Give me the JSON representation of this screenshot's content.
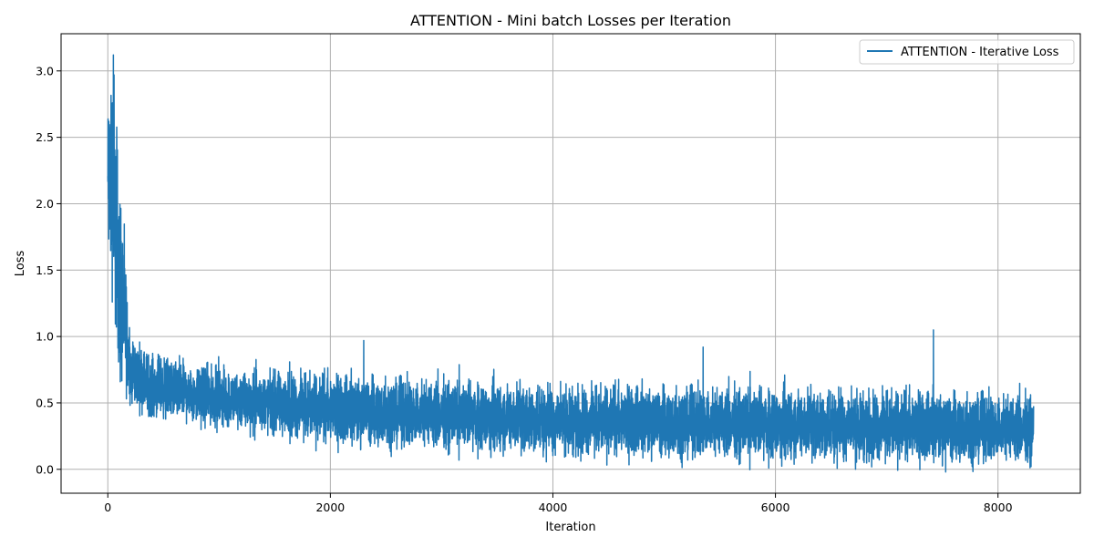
{
  "chart_data": {
    "type": "line",
    "title": "ATTENTION - Mini batch Losses per Iteration",
    "xlabel": "Iteration",
    "ylabel": "Loss",
    "xlim": [
      -420,
      8740
    ],
    "ylim": [
      -0.18,
      3.28
    ],
    "xticks": [
      0,
      2000,
      4000,
      6000,
      8000
    ],
    "xtick_labels": [
      "0",
      "2000",
      "4000",
      "6000",
      "8000"
    ],
    "yticks": [
      0.0,
      0.5,
      1.0,
      1.5,
      2.0,
      2.5,
      3.0
    ],
    "ytick_labels": [
      "0.0",
      "0.5",
      "1.0",
      "1.5",
      "2.0",
      "2.5",
      "3.0"
    ],
    "grid": true,
    "legend_position": "top-right",
    "series": [
      {
        "name": "ATTENTION - Iterative Loss",
        "color": "#1f77b4",
        "x_range": [
          0,
          8320
        ],
        "x_step": 1,
        "envelope_points": [
          {
            "x": 0,
            "min": 1.5,
            "max": 2.8
          },
          {
            "x": 50,
            "min": 1.3,
            "max": 3.12
          },
          {
            "x": 100,
            "min": 0.65,
            "max": 2.3
          },
          {
            "x": 200,
            "min": 0.5,
            "max": 1.0
          },
          {
            "x": 400,
            "min": 0.4,
            "max": 0.85
          },
          {
            "x": 1000,
            "min": 0.32,
            "max": 0.75
          },
          {
            "x": 2000,
            "min": 0.2,
            "max": 0.7
          },
          {
            "x": 4000,
            "min": 0.12,
            "max": 0.62
          },
          {
            "x": 6000,
            "min": 0.08,
            "max": 0.6
          },
          {
            "x": 8320,
            "min": 0.06,
            "max": 0.55
          }
        ],
        "notable_points": [
          {
            "x": 50,
            "y": 3.12
          },
          {
            "x": 2300,
            "y": 0.97
          },
          {
            "x": 5350,
            "y": 0.92
          },
          {
            "x": 7420,
            "y": 1.05
          },
          {
            "x": 7530,
            "y": -0.02
          },
          {
            "x": 6720,
            "y": 0.0
          }
        ]
      }
    ]
  }
}
